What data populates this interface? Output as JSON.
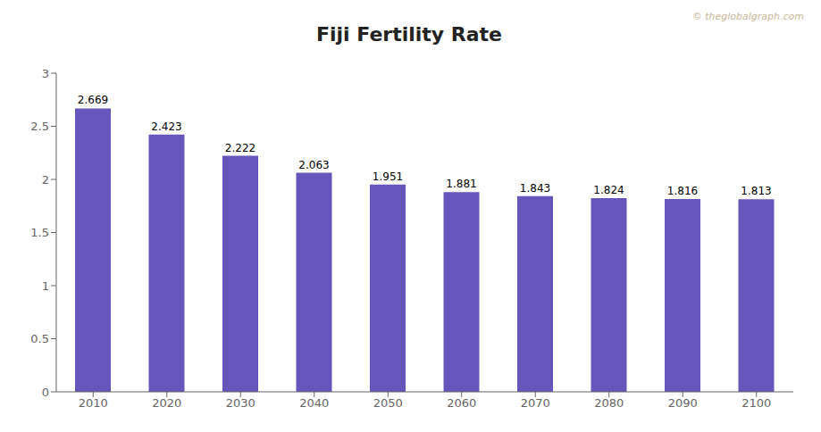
{
  "chart_data": {
    "type": "bar",
    "title": "Fiji Fertility Rate",
    "categories": [
      "2010",
      "2020",
      "2030",
      "2040",
      "2050",
      "2060",
      "2070",
      "2080",
      "2090",
      "2100"
    ],
    "values": [
      2.669,
      2.423,
      2.222,
      2.063,
      1.951,
      1.881,
      1.843,
      1.824,
      1.816,
      1.813
    ],
    "color": "#6655bb",
    "ylim": [
      0,
      3
    ],
    "yticks": [
      0,
      0.5,
      1,
      1.5,
      2,
      2.5,
      3
    ],
    "grid": false,
    "data_labels": true,
    "annotations": [
      "© theglobalgraph.com"
    ]
  }
}
